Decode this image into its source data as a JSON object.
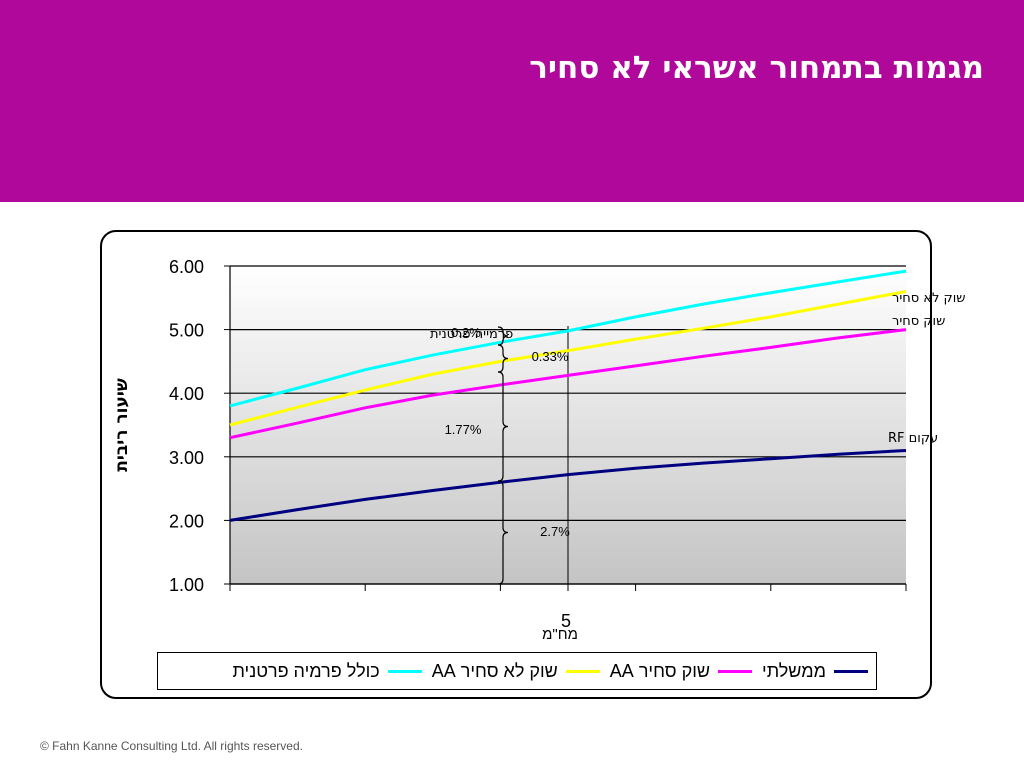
{
  "slide": {
    "title": "מגמות בתמחור אשראי לא סחיר",
    "footer": "© Fahn Kanne Consulting Ltd. All rights reserved."
  },
  "colors": {
    "header_bg": "#b0089a",
    "gov": "#000080",
    "aa_traded": "#ff00ff",
    "aa_untraded": "#ffff00",
    "incl_premium": "#00ffff"
  },
  "chart_data": {
    "type": "line",
    "title": "",
    "xlabel": "מח\"מ",
    "ylabel": "שיעור ריבית",
    "ylim": [
      1.0,
      6.0
    ],
    "y_ticks": [
      "6.00",
      "5.00",
      "4.00",
      "3.00",
      "2.00",
      "1.00"
    ],
    "x_range": [
      0,
      10
    ],
    "x_tick_label": "5",
    "grid": true,
    "legend_position": "bottom",
    "series": [
      {
        "name": "ממשלתי",
        "color": "#000080",
        "x": [
          0,
          1,
          2,
          3,
          4,
          5,
          6,
          7,
          8,
          9,
          10
        ],
        "y": [
          2.0,
          2.17,
          2.33,
          2.47,
          2.6,
          2.72,
          2.82,
          2.9,
          2.97,
          3.04,
          3.1
        ]
      },
      {
        "name": "שוק סחיר AA",
        "color": "#ff00ff",
        "x": [
          0,
          1,
          2,
          3,
          4,
          5,
          6,
          7,
          8,
          9,
          10
        ],
        "y": [
          3.3,
          3.53,
          3.77,
          3.97,
          4.13,
          4.28,
          4.43,
          4.58,
          4.72,
          4.87,
          5.0
        ]
      },
      {
        "name": "שוק לא סחיר AA",
        "color": "#ffff00",
        "x": [
          0,
          1,
          2,
          3,
          4,
          5,
          6,
          7,
          8,
          9,
          10
        ],
        "y": [
          3.5,
          3.78,
          4.05,
          4.3,
          4.5,
          4.67,
          4.85,
          5.02,
          5.2,
          5.4,
          5.6
        ]
      },
      {
        "name": "כולל פרמיה פרטנית",
        "color": "#00ffff",
        "x": [
          0,
          1,
          2,
          3,
          4,
          5,
          6,
          7,
          8,
          9,
          10
        ],
        "y": [
          3.8,
          4.08,
          4.37,
          4.6,
          4.8,
          4.98,
          5.2,
          5.4,
          5.58,
          5.75,
          5.92
        ]
      }
    ],
    "annotations": {
      "line_labels": [
        "שוק לא סחיר",
        "שוק סחיר",
        "עקום RF"
      ],
      "premium_label": "פרמייה פרטנית",
      "spreads": [
        "0.2%",
        "0.33%",
        "1.77%",
        "2.7%"
      ]
    }
  }
}
